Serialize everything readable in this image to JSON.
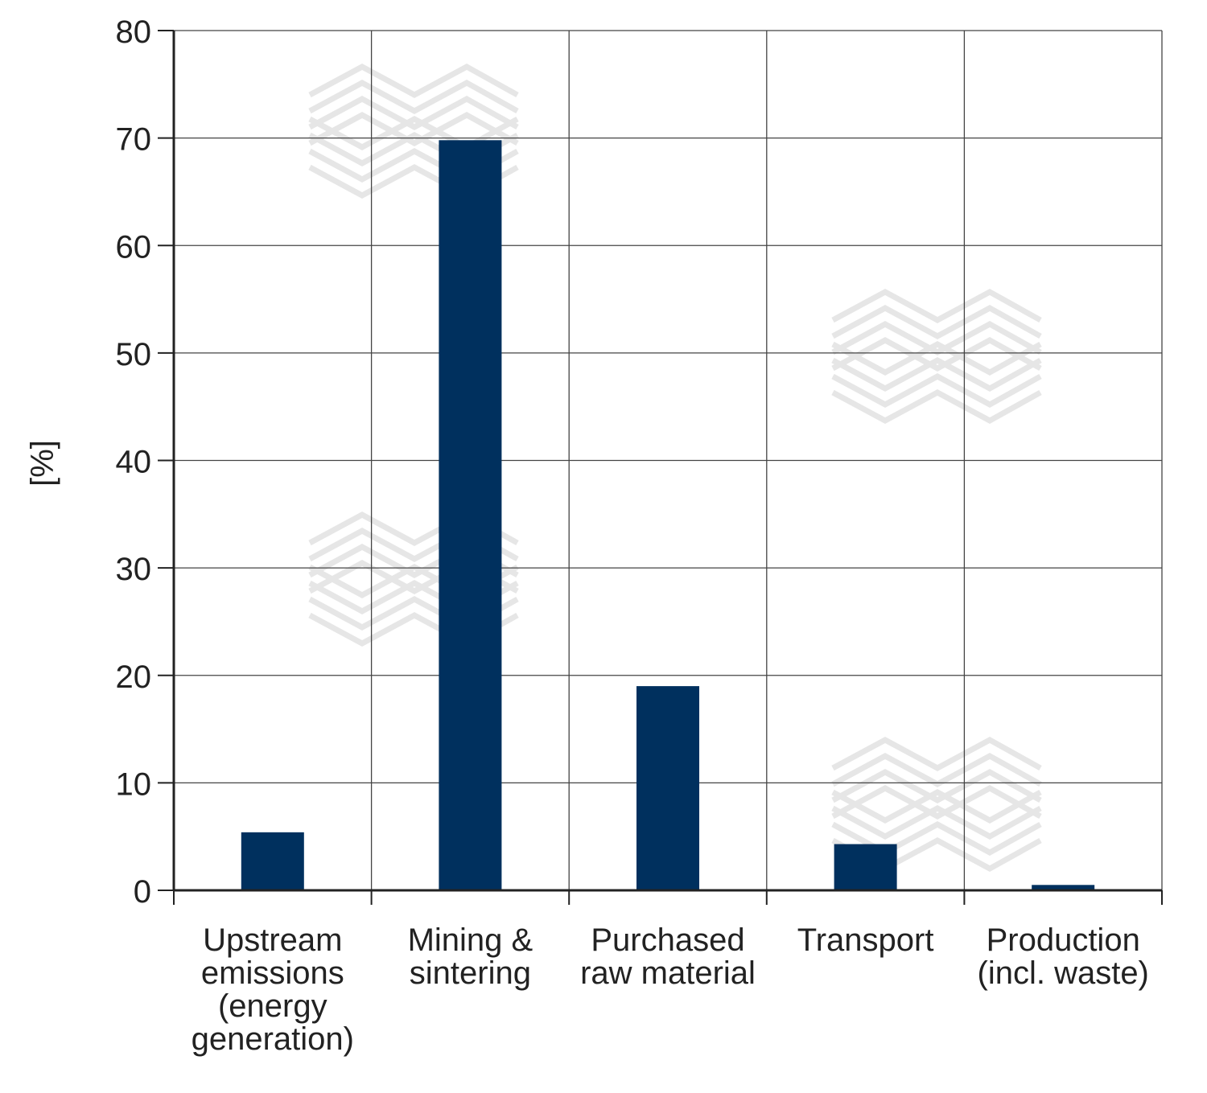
{
  "chart_data": {
    "type": "bar",
    "categories": [
      [
        "Upstream",
        "emissions",
        "(energy",
        "generation)"
      ],
      [
        "Mining &",
        "sintering"
      ],
      [
        "Purchased",
        "raw material"
      ],
      [
        "Transport"
      ],
      [
        "Production",
        "(incl. waste)"
      ]
    ],
    "values": [
      5.4,
      69.8,
      19.0,
      4.3,
      0.5
    ],
    "title": "",
    "xlabel": "",
    "ylabel": "[%]",
    "ylim": [
      0,
      80
    ],
    "yticks": [
      0,
      10,
      20,
      30,
      40,
      50,
      60,
      70,
      80
    ],
    "grid": true,
    "bar_color": "#00305e",
    "grid_color": "#444444",
    "watermark_color": "#e6e6e6"
  }
}
